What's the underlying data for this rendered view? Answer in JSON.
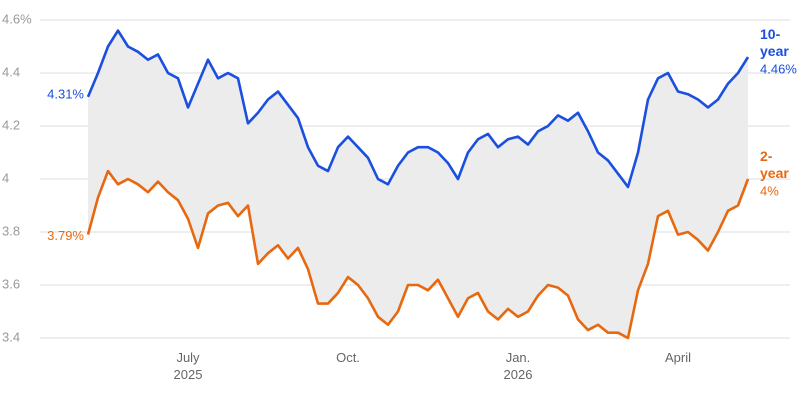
{
  "chart_data": {
    "type": "line",
    "categories": [
      null,
      null,
      null,
      null,
      null,
      null,
      null,
      null,
      null,
      null,
      "July 2025",
      null,
      null,
      null,
      null,
      null,
      null,
      null,
      null,
      null,
      null,
      null,
      null,
      null,
      null,
      null,
      "Oct.",
      null,
      null,
      null,
      null,
      null,
      null,
      null,
      null,
      null,
      null,
      null,
      null,
      null,
      null,
      null,
      null,
      "Jan. 2026",
      null,
      null,
      null,
      null,
      null,
      null,
      null,
      null,
      null,
      null,
      null,
      null,
      null,
      null,
      null,
      "April",
      null,
      null,
      null,
      null,
      null,
      null,
      null
    ],
    "series": [
      {
        "name": "10-year",
        "color": "#1a4fe0",
        "values": [
          4.31,
          4.4,
          4.5,
          4.56,
          4.5,
          4.48,
          4.45,
          4.47,
          4.4,
          4.38,
          4.27,
          4.36,
          4.45,
          4.38,
          4.4,
          4.38,
          4.21,
          4.25,
          4.3,
          4.33,
          4.28,
          4.23,
          4.12,
          4.05,
          4.03,
          4.12,
          4.16,
          4.12,
          4.08,
          4.0,
          3.98,
          4.05,
          4.1,
          4.12,
          4.12,
          4.1,
          4.06,
          4.0,
          4.1,
          4.15,
          4.17,
          4.12,
          4.15,
          4.16,
          4.13,
          4.18,
          4.2,
          4.24,
          4.22,
          4.25,
          4.18,
          4.1,
          4.07,
          4.02,
          3.97,
          4.1,
          4.3,
          4.38,
          4.4,
          4.33,
          4.32,
          4.3,
          4.27,
          4.3,
          4.36,
          4.4,
          4.46
        ],
        "value_labels": [
          "4.31%",
          null,
          null,
          null,
          null,
          null,
          null,
          null,
          null,
          null,
          null,
          null,
          null,
          null,
          null,
          null,
          null,
          null,
          null,
          null,
          null,
          null,
          null,
          null,
          null,
          null,
          null,
          null,
          null,
          null,
          null,
          null,
          null,
          null,
          null,
          null,
          null,
          null,
          null,
          null,
          null,
          null,
          null,
          null,
          null,
          null,
          null,
          null,
          null,
          null,
          null,
          null,
          null,
          null,
          null,
          null,
          null,
          null,
          null,
          null,
          null,
          null,
          null,
          null,
          null,
          null,
          "4.46%"
        ]
      },
      {
        "name": "2-year",
        "color": "#e8680f",
        "values": [
          3.79,
          3.93,
          4.03,
          3.98,
          4.0,
          3.98,
          3.95,
          3.99,
          3.95,
          3.92,
          3.85,
          3.74,
          3.87,
          3.9,
          3.91,
          3.86,
          3.9,
          3.68,
          3.72,
          3.75,
          3.7,
          3.74,
          3.66,
          3.53,
          3.53,
          3.57,
          3.63,
          3.6,
          3.55,
          3.48,
          3.45,
          3.5,
          3.6,
          3.6,
          3.58,
          3.62,
          3.55,
          3.48,
          3.55,
          3.57,
          3.5,
          3.47,
          3.51,
          3.48,
          3.5,
          3.56,
          3.6,
          3.59,
          3.56,
          3.47,
          3.43,
          3.45,
          3.42,
          3.42,
          3.4,
          3.58,
          3.68,
          3.86,
          3.88,
          3.79,
          3.8,
          3.77,
          3.73,
          3.8,
          3.88,
          3.9,
          4.0
        ],
        "value_labels": [
          "3.79%",
          null,
          null,
          null,
          null,
          null,
          null,
          null,
          null,
          null,
          null,
          null,
          null,
          null,
          null,
          null,
          null,
          null,
          null,
          null,
          null,
          null,
          null,
          null,
          null,
          null,
          null,
          null,
          null,
          null,
          null,
          null,
          null,
          null,
          null,
          null,
          null,
          null,
          null,
          null,
          null,
          null,
          null,
          null,
          null,
          null,
          null,
          null,
          null,
          null,
          null,
          null,
          null,
          null,
          null,
          null,
          null,
          null,
          null,
          null,
          null,
          null,
          null,
          null,
          null,
          null,
          "4%"
        ]
      }
    ],
    "ylim": [
      3.4,
      4.6
    ],
    "yticks": [
      3.4,
      3.6,
      3.8,
      4,
      4.2,
      4.4,
      {
        "value": 4.6,
        "label": "4.6%"
      }
    ],
    "grid": true,
    "fill_between": "#ececec"
  }
}
